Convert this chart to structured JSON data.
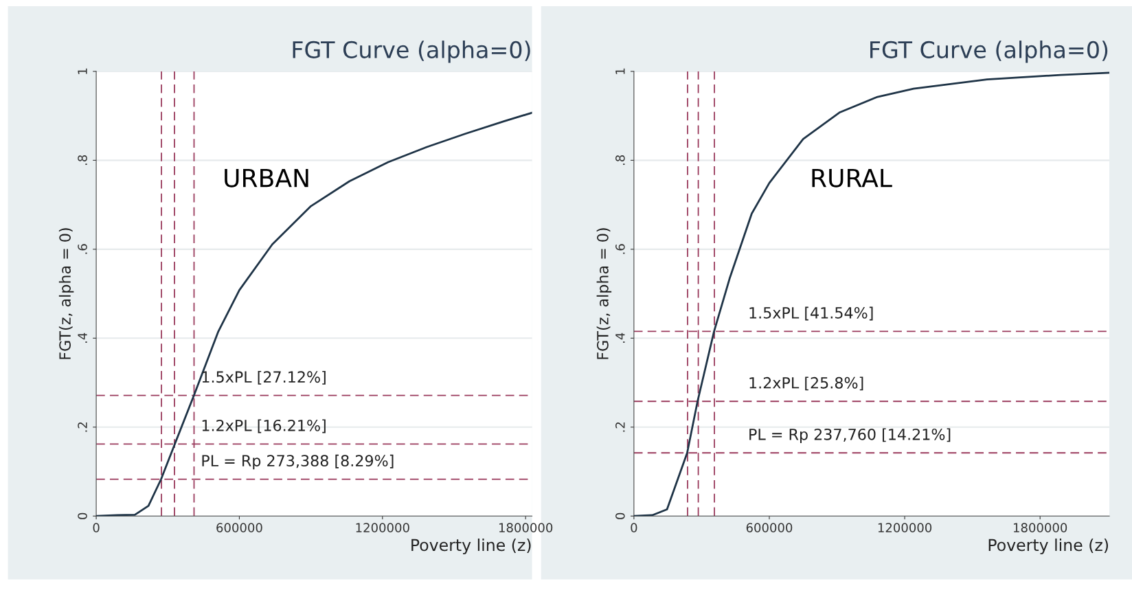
{
  "chart_data": [
    {
      "type": "line",
      "title": "FGT Curve (alpha=0)",
      "xlabel": "Poverty line (z)",
      "ylabel": "FGT(z, alpha = 0)",
      "annotations": [
        "URBAN"
      ],
      "series": [
        {
          "color": "#1f3447",
          "x": [
            0,
            89000,
            162000,
            219000,
            272000,
            328000,
            410000,
            511000,
            600000,
            738000,
            900000,
            1062000,
            1224000,
            1386000,
            1549000,
            1711000,
            1827000
          ],
          "values": [
            0,
            0.002,
            0.003,
            0.023,
            0.083,
            0.16,
            0.272,
            0.414,
            0.508,
            0.611,
            0.697,
            0.753,
            0.796,
            0.83,
            0.86,
            0.888,
            0.907
          ]
        }
      ],
      "xlim": [
        0,
        1827000
      ],
      "xticks": [
        0,
        600000,
        1200000,
        1800000
      ],
      "ylim": [
        0,
        1
      ],
      "yticks": [
        {
          "value": 0,
          "label": "0"
        },
        {
          "value": 0.2,
          "label": ".2"
        },
        {
          "value": 0.4,
          "label": ".4"
        },
        {
          "value": 0.6,
          "label": ".6"
        },
        {
          "value": 0.8,
          "label": ".8"
        },
        {
          "value": 1,
          "label": "1"
        }
      ],
      "grid": "y",
      "ref_lines": [
        {
          "axis": "x",
          "value": 273388,
          "color": "#9a3a5c",
          "line_style": "dashed"
        },
        {
          "axis": "x",
          "value": 328066,
          "color": "#9a3a5c",
          "line_style": "dashed"
        },
        {
          "axis": "x",
          "value": 410082,
          "color": "#9a3a5c",
          "line_style": "dashed"
        },
        {
          "axis": "y",
          "value": 0.0829,
          "label": "PL = Rp 273,388 [8.29%]",
          "color": "#9a3a5c",
          "line_style": "dashed"
        },
        {
          "axis": "y",
          "value": 0.1621,
          "label": "1.2xPL [16.21%]",
          "color": "#9a3a5c",
          "line_style": "dashed"
        },
        {
          "axis": "y",
          "value": 0.2712,
          "label": "1.5xPL [27.12%]",
          "color": "#9a3a5c",
          "line_style": "dashed"
        }
      ]
    },
    {
      "type": "line",
      "title": "FGT Curve (alpha=0)",
      "xlabel": "Poverty line (z)",
      "ylabel": "FGT(z, alpha = 0)",
      "annotations": [
        "RURAL"
      ],
      "series": [
        {
          "color": "#1f3447",
          "x": [
            0,
            81500,
            146700,
            236000,
            282000,
            355000,
            424000,
            522000,
            600000,
            750000,
            913000,
            1076000,
            1239000,
            1565000,
            1891000,
            2107000
          ],
          "values": [
            0,
            0.002,
            0.015,
            0.142,
            0.258,
            0.415,
            0.534,
            0.68,
            0.749,
            0.848,
            0.908,
            0.942,
            0.961,
            0.982,
            0.992,
            0.997
          ]
        }
      ],
      "xlim": [
        0,
        2107000
      ],
      "xticks": [
        0,
        600000,
        1200000,
        1800000
      ],
      "ylim": [
        0,
        1
      ],
      "yticks": [
        {
          "value": 0,
          "label": "0"
        },
        {
          "value": 0.2,
          "label": ".2"
        },
        {
          "value": 0.4,
          "label": ".4"
        },
        {
          "value": 0.6,
          "label": ".6"
        },
        {
          "value": 0.8,
          "label": ".8"
        },
        {
          "value": 1,
          "label": "1"
        }
      ],
      "grid": "y",
      "ref_lines": [
        {
          "axis": "x",
          "value": 237760,
          "color": "#9a3a5c",
          "line_style": "dashed"
        },
        {
          "axis": "x",
          "value": 285312,
          "color": "#9a3a5c",
          "line_style": "dashed"
        },
        {
          "axis": "x",
          "value": 356640,
          "color": "#9a3a5c",
          "line_style": "dashed"
        },
        {
          "axis": "y",
          "value": 0.1421,
          "label": "PL = Rp 237,760 [14.21%]",
          "color": "#9a3a5c",
          "line_style": "dashed"
        },
        {
          "axis": "y",
          "value": 0.258,
          "label": "1.2xPL [25.8%]",
          "color": "#9a3a5c",
          "line_style": "dashed"
        },
        {
          "axis": "y",
          "value": 0.4154,
          "label": "1.5xPL [41.54%]",
          "color": "#9a3a5c",
          "line_style": "dashed"
        }
      ]
    }
  ]
}
